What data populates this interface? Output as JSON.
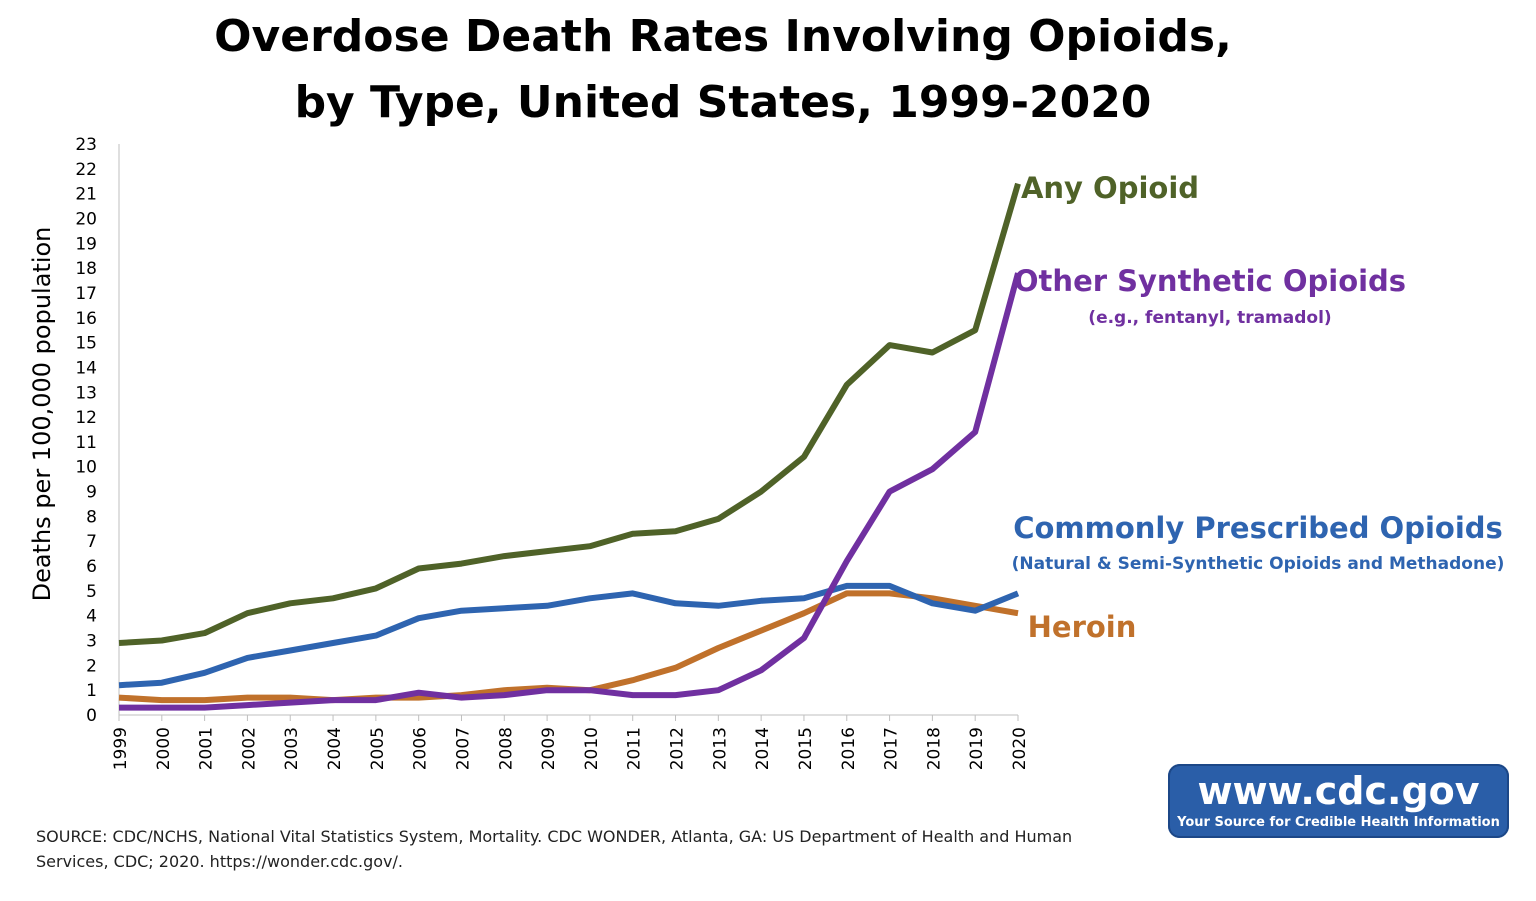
{
  "title_lines": [
    "Overdose Death Rates Involving Opioids,",
    "by Type, United States, 1999-2020"
  ],
  "source": "SOURCE: CDC/NCHS, National Vital Statistics System, Mortality. CDC WONDER, Atlanta, GA: US Department of Health and Human Services, CDC; 2020. https://wonder.cdc.gov/.",
  "badge": {
    "url": "www.cdc.gov",
    "tagline": "Your Source for Credible Health Information"
  },
  "chart_data": {
    "type": "line",
    "title": "Overdose Death Rates Involving Opioids, by Type, United States, 1999-2020",
    "xlabel": "",
    "ylabel": "Deaths per 100,000 population",
    "ylim": [
      0,
      23
    ],
    "yticks": [
      0,
      1,
      2,
      3,
      4,
      5,
      6,
      7,
      8,
      9,
      10,
      11,
      12,
      13,
      14,
      15,
      16,
      17,
      18,
      19,
      20,
      21,
      22,
      23
    ],
    "x": [
      "1999",
      "2000",
      "2001",
      "2002",
      "2003",
      "2004",
      "2005",
      "2006",
      "2007",
      "2008",
      "2009",
      "2010",
      "2011",
      "2012",
      "2013",
      "2014",
      "2015",
      "2016",
      "2017",
      "2018",
      "2019",
      "2020"
    ],
    "grid": false,
    "legend": "inline labels at right end of lines",
    "series": [
      {
        "name": "Any Opioid",
        "sublabel": "",
        "color": "#4f6228",
        "values": [
          2.9,
          3.0,
          3.3,
          4.1,
          4.5,
          4.7,
          5.1,
          5.9,
          6.1,
          6.4,
          6.6,
          6.8,
          7.3,
          7.4,
          7.9,
          9.0,
          10.4,
          13.3,
          14.9,
          14.6,
          15.5,
          21.4
        ]
      },
      {
        "name": "Other Synthetic Opioids",
        "sublabel": "(e.g., fentanyl, tramadol)",
        "color": "#7030a0",
        "values": [
          0.3,
          0.3,
          0.3,
          0.4,
          0.5,
          0.6,
          0.6,
          0.9,
          0.7,
          0.8,
          1.0,
          1.0,
          0.8,
          0.8,
          1.0,
          1.8,
          3.1,
          6.2,
          9.0,
          9.9,
          11.4,
          17.8
        ]
      },
      {
        "name": "Commonly Prescribed Opioids",
        "sublabel": "(Natural & Semi-Synthetic Opioids and Methadone)",
        "color": "#2e64b0",
        "values": [
          1.2,
          1.3,
          1.7,
          2.3,
          2.6,
          2.9,
          3.2,
          3.9,
          4.2,
          4.3,
          4.4,
          4.7,
          4.9,
          4.5,
          4.4,
          4.6,
          4.7,
          5.2,
          5.2,
          4.5,
          4.2,
          4.9
        ]
      },
      {
        "name": "Heroin",
        "sublabel": "",
        "color": "#c0712b",
        "values": [
          0.7,
          0.6,
          0.6,
          0.7,
          0.7,
          0.6,
          0.7,
          0.7,
          0.8,
          1.0,
          1.1,
          1.0,
          1.4,
          1.9,
          2.7,
          3.4,
          4.1,
          4.9,
          4.9,
          4.7,
          4.4,
          4.1
        ]
      }
    ]
  }
}
